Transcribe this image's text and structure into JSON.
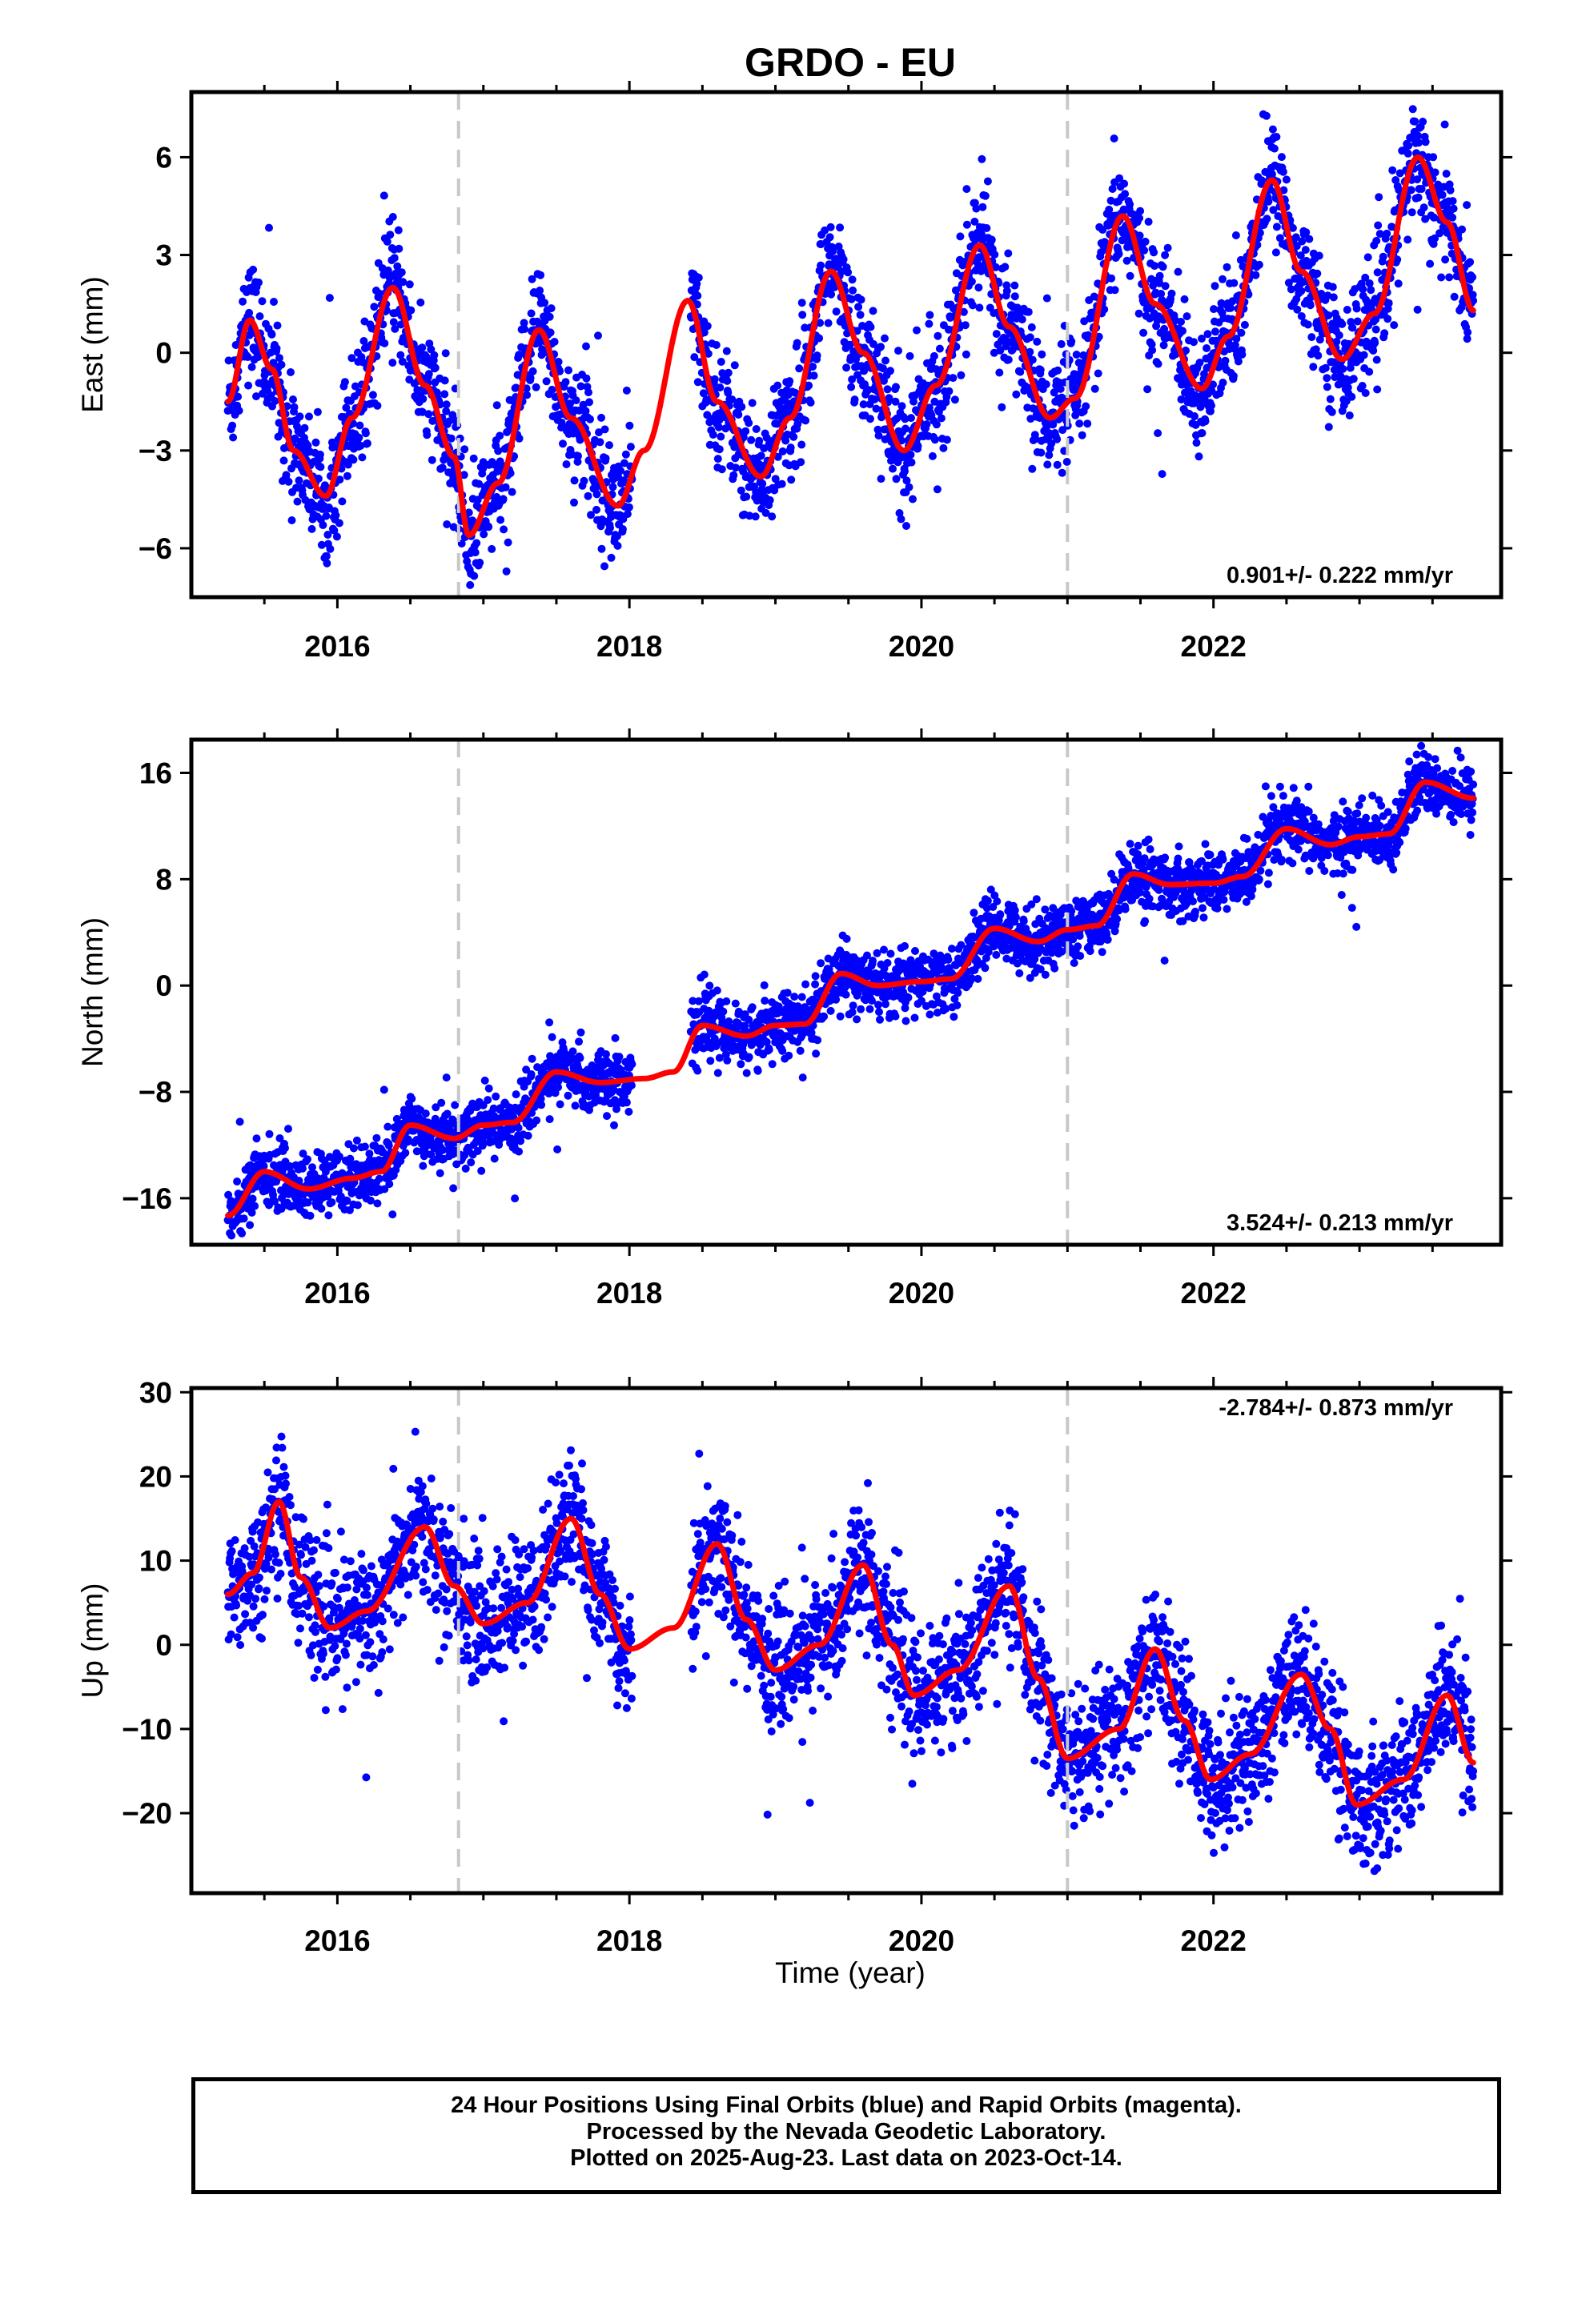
{
  "title": "GRDO - EU",
  "xlabel": "Time (year)",
  "x_ticks": [
    "2016",
    "2018",
    "2020",
    "2022"
  ],
  "colors": {
    "points": "#0000ff",
    "model": "#ff0000",
    "breaks": "#c8c8c8",
    "frame": "#000000"
  },
  "footer": {
    "line1": "24 Hour Positions Using Final Orbits (blue) and Rapid Orbits (magenta).",
    "line2": "Processed by the Nevada Geodetic Laboratory.",
    "line3": "Plotted on 2025-Aug-23. Last data on 2023-Oct-14."
  },
  "chart_data": [
    {
      "type": "scatter",
      "ylabel": "East (mm)",
      "xlim": [
        2015.0,
        2023.97
      ],
      "ylim": [
        -7.5,
        8.0
      ],
      "y_ticks": [
        "6",
        "3",
        "0",
        "−3",
        "−6"
      ],
      "y_tick_values": [
        6,
        3,
        0,
        -3,
        -6
      ],
      "rate_label": "0.901+/- 0.222 mm/yr",
      "rate_position": "bottom-right",
      "breaks": [
        2016.83,
        2021.0
      ],
      "model_knots": [
        [
          2015.25,
          -1.5
        ],
        [
          2015.4,
          1.0
        ],
        [
          2015.55,
          -0.5
        ],
        [
          2015.7,
          -3.0
        ],
        [
          2015.92,
          -4.4
        ],
        [
          2016.1,
          -2.0
        ],
        [
          2016.38,
          2.0
        ],
        [
          2016.6,
          -1.0
        ],
        [
          2016.8,
          -3.2
        ],
        [
          2016.9,
          -5.6
        ],
        [
          2017.1,
          -4.0
        ],
        [
          2017.38,
          0.7
        ],
        [
          2017.6,
          -2.0
        ],
        [
          2017.92,
          -4.7
        ],
        [
          2018.1,
          -3.0
        ],
        [
          2018.4,
          1.6
        ],
        [
          2018.6,
          -1.5
        ],
        [
          2018.9,
          -3.8
        ],
        [
          2019.1,
          -2.0
        ],
        [
          2019.38,
          2.5
        ],
        [
          2019.6,
          0.0
        ],
        [
          2019.88,
          -3.0
        ],
        [
          2020.1,
          -1.0
        ],
        [
          2020.4,
          3.3
        ],
        [
          2020.6,
          0.8
        ],
        [
          2020.88,
          -2.0
        ],
        [
          2021.05,
          -1.4
        ],
        [
          2021.38,
          4.2
        ],
        [
          2021.6,
          1.5
        ],
        [
          2021.92,
          -1.1
        ],
        [
          2022.1,
          0.5
        ],
        [
          2022.4,
          5.3
        ],
        [
          2022.6,
          2.5
        ],
        [
          2022.88,
          -0.2
        ],
        [
          2023.1,
          1.2
        ],
        [
          2023.4,
          6.0
        ],
        [
          2023.6,
          4.0
        ],
        [
          2023.78,
          1.3
        ]
      ],
      "scatter_sd": 0.9
    },
    {
      "type": "scatter",
      "ylabel": "North (mm)",
      "xlim": [
        2015.0,
        2023.97
      ],
      "ylim": [
        -19.5,
        18.5
      ],
      "y_ticks": [
        "16",
        "8",
        "0",
        "−8",
        "−16"
      ],
      "y_tick_values": [
        16,
        8,
        0,
        -8,
        -16
      ],
      "rate_label": "3.524+/- 0.213 mm/yr",
      "rate_position": "bottom-right",
      "breaks": [
        2016.83,
        2021.0
      ],
      "model_knots": [
        [
          2015.25,
          -17.3
        ],
        [
          2015.5,
          -14.0
        ],
        [
          2015.8,
          -15.3
        ],
        [
          2016.1,
          -14.5
        ],
        [
          2016.3,
          -14.0
        ],
        [
          2016.5,
          -10.5
        ],
        [
          2016.8,
          -11.5
        ],
        [
          2017.0,
          -10.5
        ],
        [
          2017.2,
          -10.3
        ],
        [
          2017.5,
          -6.5
        ],
        [
          2017.8,
          -7.3
        ],
        [
          2018.1,
          -7.0
        ],
        [
          2018.3,
          -6.5
        ],
        [
          2018.5,
          -3.0
        ],
        [
          2018.8,
          -3.8
        ],
        [
          2019.0,
          -3.0
        ],
        [
          2019.2,
          -2.9
        ],
        [
          2019.45,
          0.9
        ],
        [
          2019.7,
          0.0
        ],
        [
          2020.0,
          0.3
        ],
        [
          2020.2,
          0.5
        ],
        [
          2020.5,
          4.3
        ],
        [
          2020.8,
          3.3
        ],
        [
          2021.0,
          4.2
        ],
        [
          2021.2,
          4.5
        ],
        [
          2021.45,
          8.4
        ],
        [
          2021.7,
          7.6
        ],
        [
          2022.0,
          7.7
        ],
        [
          2022.2,
          8.2
        ],
        [
          2022.5,
          11.8
        ],
        [
          2022.8,
          10.6
        ],
        [
          2023.0,
          11.2
        ],
        [
          2023.2,
          11.4
        ],
        [
          2023.45,
          15.3
        ],
        [
          2023.78,
          14.1
        ]
      ],
      "scatter_sd": 1.2
    },
    {
      "type": "scatter",
      "ylabel": "Up (mm)",
      "xlim": [
        2015.0,
        2023.97
      ],
      "ylim": [
        -29.5,
        30.5
      ],
      "y_ticks": [
        "30",
        "20",
        "10",
        "0",
        "−10",
        "−20"
      ],
      "y_tick_values": [
        30,
        20,
        10,
        0,
        -10,
        -20
      ],
      "rate_label": "-2.784+/- 0.873 mm/yr",
      "rate_position": "top-right",
      "breaks": [
        2016.83,
        2021.0
      ],
      "model_knots": [
        [
          2015.25,
          6.0
        ],
        [
          2015.42,
          8.5
        ],
        [
          2015.6,
          17.0
        ],
        [
          2015.75,
          8.0
        ],
        [
          2015.95,
          2.0
        ],
        [
          2016.2,
          4.0
        ],
        [
          2016.6,
          14.0
        ],
        [
          2016.8,
          7.0
        ],
        [
          2017.0,
          2.5
        ],
        [
          2017.3,
          5.0
        ],
        [
          2017.6,
          15.0
        ],
        [
          2017.8,
          6.0
        ],
        [
          2018.0,
          -0.5
        ],
        [
          2018.3,
          2.0
        ],
        [
          2018.6,
          12.0
        ],
        [
          2018.8,
          3.0
        ],
        [
          2019.0,
          -3.0
        ],
        [
          2019.3,
          0.0
        ],
        [
          2019.6,
          9.5
        ],
        [
          2019.8,
          0.0
        ],
        [
          2019.95,
          -6.0
        ],
        [
          2020.25,
          -3.0
        ],
        [
          2020.6,
          7.0
        ],
        [
          2020.8,
          -4.0
        ],
        [
          2021.0,
          -13.5
        ],
        [
          2021.35,
          -10.0
        ],
        [
          2021.6,
          -0.5
        ],
        [
          2021.8,
          -9.0
        ],
        [
          2021.98,
          -16.0
        ],
        [
          2022.25,
          -13.0
        ],
        [
          2022.6,
          -3.5
        ],
        [
          2022.8,
          -10.0
        ],
        [
          2022.98,
          -19.0
        ],
        [
          2023.3,
          -16.0
        ],
        [
          2023.6,
          -6.0
        ],
        [
          2023.78,
          -14.0
        ]
      ],
      "scatter_sd": 3.8
    }
  ]
}
